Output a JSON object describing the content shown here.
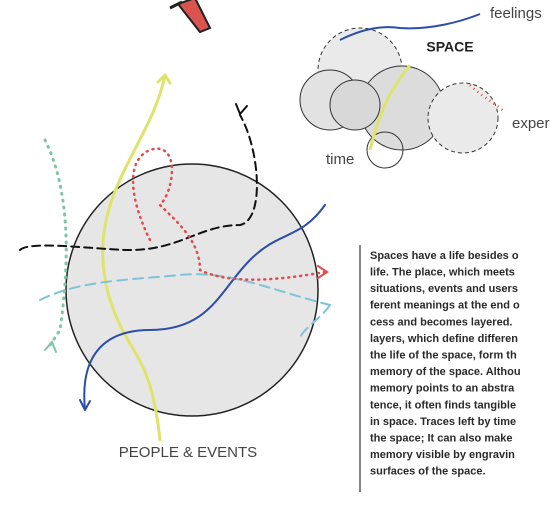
{
  "labels": {
    "feelings": "feelings",
    "space": "SPACE",
    "experience": "exper",
    "time": "time",
    "people_events": "PEOPLE & EVENTS"
  },
  "paragraph": [
    "Spaces have a life besides o",
    "life. The place, which meets",
    "situations, events and users",
    "ferent meanings at the end o",
    "cess and becomes layered.",
    "layers, which define differen",
    "the life of the space, form th",
    "memory of the space. Althou",
    "memory points to an abstra",
    "tence, it often finds tangible",
    "in space. Traces left by time",
    "the space; It can also make",
    "memory visible by engravin",
    "surfaces of the space."
  ]
}
